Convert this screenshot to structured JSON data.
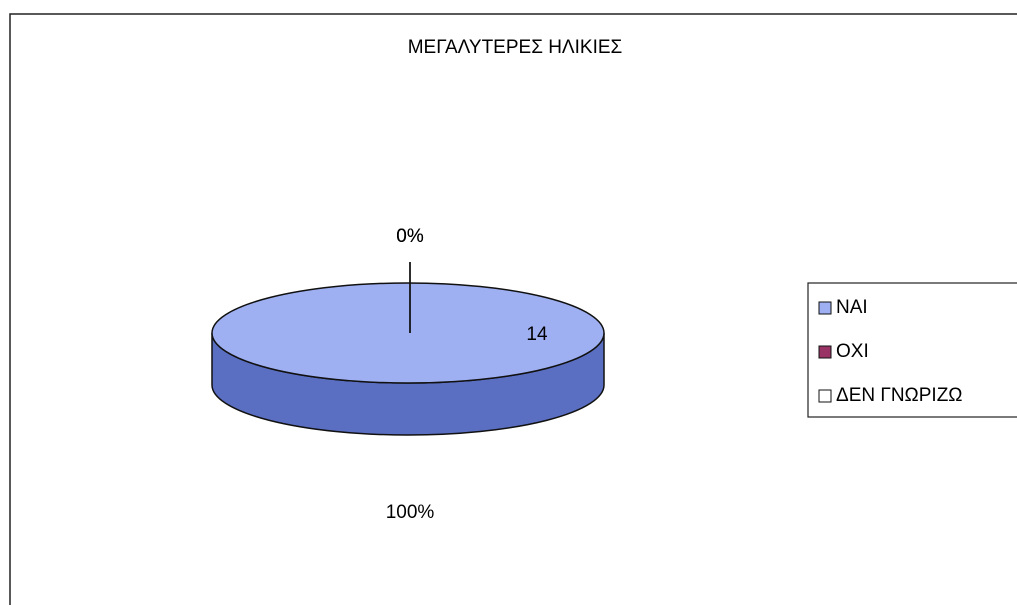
{
  "chart_data": {
    "type": "pie3d",
    "title": "ΜΕΓΑΛΥΤΕΡΕΣ ΗΛΙΚΙΕΣ",
    "categories": [
      "ΝΑΙ",
      "ΟΧΙ",
      "ΔΕΝ ΓΝΩΡΙΖΩ"
    ],
    "values": [
      14,
      0,
      0
    ],
    "percents": [
      100,
      0,
      0
    ],
    "percent_labels": [
      "100%",
      "0%",
      "0%"
    ],
    "colors": [
      "#9fb0f2",
      "#993366",
      "#ffffff"
    ],
    "side_colors": [
      "#5b6fc2",
      "#6b2447",
      "#cccccc"
    ],
    "legend": "right"
  }
}
